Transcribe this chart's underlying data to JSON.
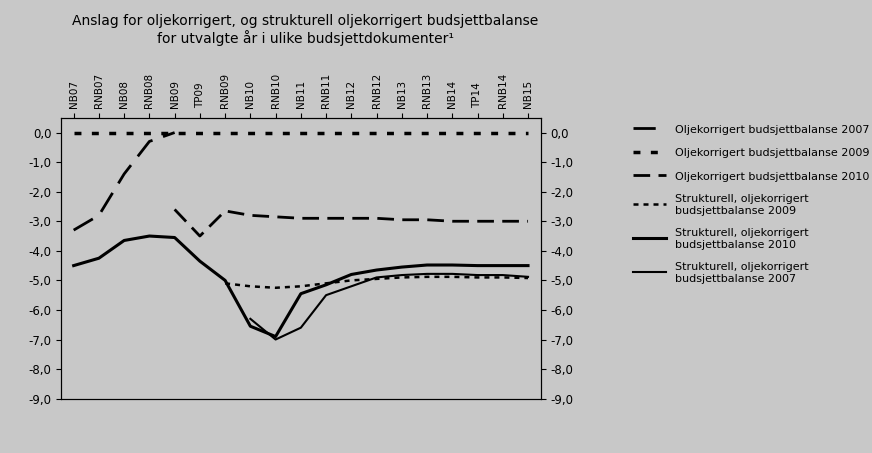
{
  "title_line1": "Anslag for oljekorrigert, og strukturell oljekorrigert budsjettbalanse",
  "title_line2": "for utvalgte år i ulike budsjettdokumenter¹",
  "background_color": "#c8c8c8",
  "text_color": "#000000",
  "x_labels": [
    "NB07",
    "RNB07",
    "NB08",
    "RNB08",
    "NB09",
    "TP09",
    "RNB09",
    "NB10",
    "RNB10",
    "NB11",
    "RNB11",
    "NB12",
    "RNB12",
    "NB13",
    "RNB13",
    "NB14",
    "TP14",
    "RNB14",
    "NB15"
  ],
  "ylim": [
    -9.0,
    0.5
  ],
  "yticks": [
    0.0,
    -1.0,
    -2.0,
    -3.0,
    -4.0,
    -5.0,
    -6.0,
    -7.0,
    -8.0,
    -9.0
  ],
  "series": {
    "oljekorrigert_2007": {
      "label": "Oljekorrigert budsjettbalanse 2007",
      "color": "#000000",
      "linewidth": 2.0,
      "dash_pattern": [
        8,
        4
      ],
      "data_x": [
        0,
        1,
        2,
        3,
        4
      ],
      "data_y": [
        -3.3,
        -2.8,
        -1.4,
        -0.3,
        0.0
      ]
    },
    "oljekorrigert_2009": {
      "label": "Oljekorrigert budsjettbalanse 2009",
      "color": "#000000",
      "linewidth": 2.5,
      "dash_pattern": [
        2,
        3
      ],
      "data_x": [
        0,
        1,
        2,
        3,
        4,
        5,
        6,
        7,
        8,
        9,
        10,
        11,
        12,
        13,
        14,
        15,
        16,
        17,
        18
      ],
      "data_y": [
        0.0,
        0.0,
        0.0,
        0.0,
        0.0,
        0.0,
        0.0,
        0.0,
        0.0,
        0.0,
        0.0,
        0.0,
        0.0,
        0.0,
        0.0,
        0.0,
        0.0,
        0.0,
        0.0
      ]
    },
    "oljekorrigert_2010": {
      "label": "Oljekorrigert budsjettbalanse 2010",
      "color": "#000000",
      "linewidth": 2.0,
      "dash_pattern": [
        6,
        3
      ],
      "data_x": [
        4,
        5,
        6,
        7,
        8,
        9,
        10,
        11,
        12,
        13,
        14,
        15,
        16,
        17,
        18
      ],
      "data_y": [
        -2.6,
        -3.5,
        -2.65,
        -2.8,
        -2.85,
        -2.9,
        -2.9,
        -2.9,
        -2.9,
        -2.95,
        -2.95,
        -3.0,
        -3.0,
        -3.0,
        -3.0
      ]
    },
    "strukturell_2009": {
      "label": "Strukturell, oljekorrigert\nbudsjettbalanse 2009",
      "color": "#000000",
      "linewidth": 1.8,
      "dash_pattern": [
        2,
        2
      ],
      "data_x": [
        6,
        7,
        8,
        9,
        10,
        11,
        12,
        13,
        14,
        15,
        16,
        17,
        18
      ],
      "data_y": [
        -5.1,
        -5.2,
        -5.25,
        -5.2,
        -5.1,
        -5.0,
        -4.95,
        -4.9,
        -4.88,
        -4.88,
        -4.9,
        -4.9,
        -4.92
      ]
    },
    "strukturell_2010": {
      "label": "Strukturell, oljekorrigert\nbudsjettbalanse 2010",
      "color": "#000000",
      "linewidth": 2.2,
      "data_x": [
        0,
        1,
        2,
        3,
        4,
        5,
        6,
        7,
        8,
        9,
        10,
        11,
        12,
        13,
        14,
        15,
        16,
        17,
        18
      ],
      "data_y": [
        -4.5,
        -4.25,
        -3.65,
        -3.5,
        -3.55,
        -4.35,
        -5.0,
        -6.55,
        -6.9,
        -5.45,
        -5.15,
        -4.8,
        -4.65,
        -4.55,
        -4.48,
        -4.48,
        -4.5,
        -4.5,
        -4.5
      ]
    },
    "strukturell_2007": {
      "label": "Strukturell, oljekorrigert\nbudsjettbalanse 2007",
      "color": "#000000",
      "linewidth": 1.5,
      "data_x": [
        7,
        8,
        9,
        10,
        11,
        12,
        13,
        14,
        15,
        16,
        17,
        18
      ],
      "data_y": [
        -6.3,
        -7.0,
        -6.6,
        -5.5,
        -5.2,
        -4.9,
        -4.82,
        -4.78,
        -4.78,
        -4.82,
        -4.82,
        -4.88
      ]
    }
  }
}
